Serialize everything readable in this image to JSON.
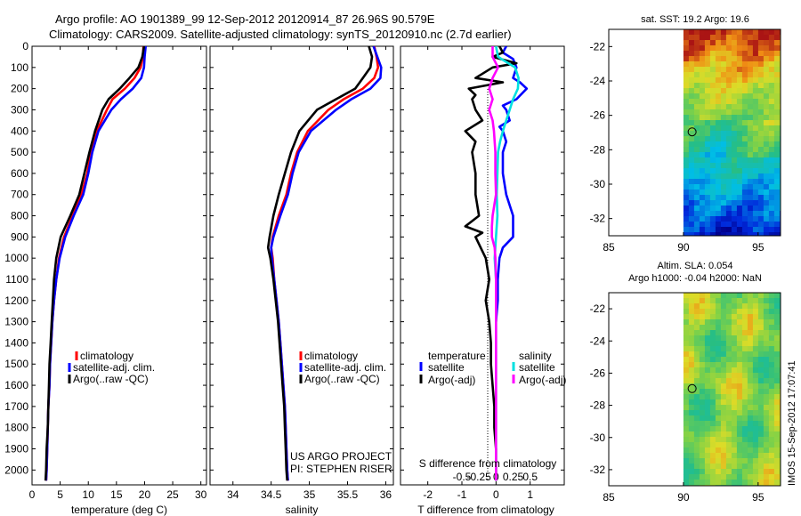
{
  "header": {
    "line1": "Argo profile: AO 1901389_99 12-Sep-2012 20120914_87 26.96S 90.579E",
    "line2": "Climatology: CARS2009. Satellite-adjusted climatology: synTS_20120910.nc (2.7d earlier)"
  },
  "project": {
    "line1": "US ARGO PROJECT",
    "line2": "PI: STEPHEN RISER"
  },
  "footer_stamp": "IMOS 15-Sep-2012 17:07:41",
  "colors": {
    "climatology": "#ff0000",
    "satellite_adj": "#0000ff",
    "argo": "#000000",
    "salinity_satellite": "#00e0e0",
    "salinity_argo": "#ff00ff"
  },
  "chart_data": [
    {
      "id": "temperature",
      "type": "line",
      "xlabel": "temperature (deg C)",
      "ylabel": "",
      "xlim": [
        0,
        31
      ],
      "ylim": [
        2070,
        0
      ],
      "x_ticks": [
        0,
        5,
        10,
        15,
        20,
        25,
        30
      ],
      "x_tick_labels": [
        "0",
        "5",
        "10",
        "15",
        "20",
        "25",
        "30"
      ],
      "y_ticks": [
        0,
        100,
        200,
        300,
        400,
        500,
        600,
        700,
        800,
        900,
        1000,
        1100,
        1200,
        1300,
        1400,
        1500,
        1600,
        1700,
        1800,
        1900,
        2000
      ],
      "y_tick_labels": [
        "0",
        "100",
        "200",
        "300",
        "400",
        "500",
        "600",
        "700",
        "800",
        "900",
        "1000",
        "1100",
        "1200",
        "1300",
        "1400",
        "1500",
        "1600",
        "1700",
        "1800",
        "1900",
        "2000"
      ],
      "legend": [
        "climatology",
        "satellite-adj. clim.",
        "Argo(..raw -QC)"
      ],
      "series": [
        {
          "name": "climatology",
          "color": "#ff0000",
          "depth": [
            0,
            50,
            100,
            150,
            200,
            250,
            300,
            400,
            500,
            600,
            700,
            800,
            900,
            1000,
            1100,
            1200,
            1300,
            1400,
            1500,
            1600,
            1700,
            1800,
            1900,
            2000,
            2050
          ],
          "values": [
            19.8,
            19.7,
            19.3,
            18.2,
            16.5,
            14.3,
            13.3,
            11.5,
            10.5,
            9.8,
            8.8,
            7.2,
            5.7,
            4.8,
            4.3,
            3.9,
            3.6,
            3.4,
            3.2,
            3.1,
            2.9,
            2.8,
            2.7,
            2.6,
            2.5
          ]
        },
        {
          "name": "satellite-adj. clim.",
          "color": "#0000ff",
          "depth": [
            0,
            50,
            100,
            150,
            200,
            250,
            300,
            400,
            500,
            600,
            700,
            800,
            900,
            1000,
            1100,
            1200,
            1300,
            1400,
            1500,
            1600,
            1700,
            1800,
            1900,
            2000,
            2050
          ],
          "values": [
            20.2,
            20.0,
            19.9,
            19.4,
            17.9,
            15.8,
            14.1,
            11.8,
            10.7,
            10.0,
            9.1,
            7.4,
            5.9,
            4.9,
            4.3,
            3.9,
            3.6,
            3.4,
            3.2,
            3.1,
            2.9,
            2.8,
            2.7,
            2.6,
            2.5
          ]
        },
        {
          "name": "Argo(..raw -QC)",
          "color": "#000000",
          "depth": [
            0,
            50,
            100,
            150,
            200,
            250,
            300,
            400,
            500,
            600,
            700,
            800,
            900,
            1000,
            1100,
            1200,
            1300,
            1400,
            1500,
            1600,
            1700,
            1800,
            1900,
            2000,
            2050
          ],
          "values": [
            19.9,
            19.6,
            18.9,
            17.3,
            15.6,
            13.6,
            12.5,
            11.2,
            10.2,
            9.3,
            8.4,
            6.8,
            5.1,
            4.3,
            3.9,
            3.7,
            3.5,
            3.3,
            3.1,
            3.0,
            2.9,
            2.8,
            2.6,
            2.5,
            2.4
          ]
        }
      ]
    },
    {
      "id": "salinity",
      "type": "line",
      "xlabel": "salinity",
      "xlim": [
        33.7,
        36.1
      ],
      "ylim": [
        2070,
        0
      ],
      "x_ticks": [
        34,
        34.5,
        35,
        35.5,
        36
      ],
      "x_tick_labels": [
        "34",
        "34.5",
        "35",
        "35.5",
        "36"
      ],
      "legend": [
        "climatology",
        "satellite-adj. clim.",
        "Argo(..raw -QC)"
      ],
      "series": [
        {
          "name": "climatology",
          "color": "#ff0000",
          "depth": [
            0,
            50,
            100,
            150,
            200,
            250,
            300,
            400,
            500,
            600,
            700,
            800,
            900,
            950,
            1000,
            1100,
            1200,
            1300,
            1400,
            1500,
            1600,
            1700,
            1800,
            1900,
            2000,
            2050
          ],
          "values": [
            35.85,
            35.88,
            35.9,
            35.85,
            35.7,
            35.45,
            35.25,
            34.98,
            34.84,
            34.76,
            34.7,
            34.6,
            34.52,
            34.5,
            34.52,
            34.54,
            34.57,
            34.6,
            34.62,
            34.64,
            34.66,
            34.68,
            34.69,
            34.7,
            34.71,
            34.72
          ]
        },
        {
          "name": "satellite-adj. clim.",
          "color": "#0000ff",
          "depth": [
            0,
            50,
            100,
            150,
            200,
            250,
            300,
            400,
            500,
            600,
            700,
            800,
            900,
            950,
            1000,
            1100,
            1200,
            1300,
            1400,
            1500,
            1600,
            1700,
            1800,
            1900,
            2000,
            2050
          ],
          "values": [
            35.84,
            35.89,
            35.94,
            35.93,
            35.8,
            35.55,
            35.35,
            35.02,
            34.86,
            34.78,
            34.72,
            34.62,
            34.53,
            34.5,
            34.51,
            34.54,
            34.57,
            34.6,
            34.62,
            34.64,
            34.66,
            34.68,
            34.69,
            34.7,
            34.71,
            34.72
          ]
        },
        {
          "name": "Argo(..raw -QC)",
          "color": "#000000",
          "depth": [
            0,
            50,
            100,
            150,
            200,
            250,
            300,
            400,
            500,
            600,
            700,
            800,
            900,
            950,
            1000,
            1100,
            1200,
            1300,
            1400,
            1500,
            1600,
            1700,
            1800,
            1900,
            2000,
            2050
          ],
          "values": [
            35.78,
            35.82,
            35.8,
            35.7,
            35.6,
            35.35,
            35.1,
            34.87,
            34.76,
            34.68,
            34.6,
            34.53,
            34.48,
            34.46,
            34.49,
            34.53,
            34.56,
            34.59,
            34.61,
            34.63,
            34.65,
            34.67,
            34.68,
            34.69,
            34.7,
            34.71
          ]
        }
      ]
    },
    {
      "id": "differences",
      "type": "line",
      "xlabel": "T difference from climatology",
      "xlabel_top": "S difference from climatology",
      "xlim": [
        -2.8,
        2.0
      ],
      "ylim": [
        2070,
        0
      ],
      "x_ticks": [
        -2,
        -1,
        0,
        1
      ],
      "x_tick_labels": [
        "-2",
        "-1",
        "0",
        "1"
      ],
      "s_ticks": [
        -0.5,
        -0.25,
        0,
        0.25,
        0.5
      ],
      "s_tick_labels": [
        "-0.5",
        "-0.25",
        "0",
        "0.25",
        "0.5"
      ],
      "legend_groups": [
        {
          "title": "temperature",
          "entries": [
            "satellite",
            "Argo(-adj)"
          ]
        },
        {
          "title": "salinity",
          "entries": [
            "satellite",
            "Argo(-adj)"
          ]
        }
      ],
      "series": [
        {
          "name": "temperature satellite",
          "color": "#0000ff",
          "depth": [
            0,
            30,
            60,
            100,
            150,
            170,
            200,
            250,
            280,
            300,
            350,
            380,
            400,
            450,
            500,
            600,
            700,
            800,
            850,
            900,
            950,
            1000,
            1100,
            1200,
            1300
          ],
          "values": [
            0.3,
            0.2,
            0.5,
            0.6,
            0.5,
            0.7,
            0.9,
            0.6,
            0.2,
            0.3,
            0.4,
            0.1,
            0.2,
            0.3,
            0.2,
            0.2,
            0.3,
            0.5,
            0.5,
            0.5,
            0.2,
            0.1,
            0.05,
            0.05,
            0.0
          ]
        },
        {
          "name": "temperature Argo(-adj)",
          "color": "#000000",
          "depth": [
            0,
            30,
            50,
            80,
            100,
            150,
            170,
            200,
            230,
            250,
            300,
            350,
            400,
            450,
            500,
            600,
            700,
            800,
            850,
            880,
            900,
            1000,
            1100,
            1200,
            1300,
            1400,
            1500,
            1600,
            1700,
            1800,
            1900,
            2000,
            2050
          ],
          "values": [
            0.1,
            0.2,
            -0.1,
            0.6,
            -0.1,
            -0.6,
            0.2,
            -0.8,
            -0.6,
            -0.7,
            -0.6,
            -0.4,
            -0.9,
            -0.6,
            -0.7,
            -0.6,
            -0.6,
            -0.5,
            -0.9,
            -0.4,
            -0.6,
            -0.3,
            -0.2,
            -0.3,
            -0.2,
            -0.15,
            -0.15,
            -0.1,
            -0.05,
            -0.05,
            0.0,
            0.0,
            0.0
          ]
        },
        {
          "name": "salinity satellite",
          "color": "#00e0e0",
          "depth": [
            0,
            50,
            100,
            150,
            200,
            250,
            300,
            350,
            400,
            450,
            500,
            600,
            700,
            800,
            900,
            1000,
            1100,
            1200,
            1400,
            1600,
            1800,
            2000,
            2050
          ],
          "values": [
            0.0,
            0.03,
            0.28,
            0.33,
            0.32,
            0.25,
            0.2,
            0.15,
            0.1,
            0.06,
            0.03,
            0.02,
            0.01,
            0.02,
            0.0,
            -0.02,
            0.0,
            0.0,
            0.0,
            0.0,
            0.0,
            0.0,
            0.0
          ]
        },
        {
          "name": "salinity Argo(-adj)",
          "color": "#ff00ff",
          "depth": [
            0,
            50,
            100,
            150,
            200,
            250,
            300,
            350,
            400,
            450,
            500,
            600,
            700,
            800,
            850,
            900,
            950,
            1000,
            1100,
            1200,
            1300,
            1400,
            1500,
            1600,
            1700,
            1800,
            1900,
            2000,
            2050
          ],
          "values": [
            -0.05,
            -0.05,
            0.03,
            -0.05,
            -0.1,
            -0.05,
            -0.1,
            -0.05,
            -0.03,
            -0.02,
            -0.01,
            -0.01,
            0.0,
            -0.05,
            -0.06,
            -0.06,
            -0.02,
            -0.01,
            0.0,
            0.0,
            0.0,
            0.0,
            0.0,
            0.0,
            0.0,
            0.0,
            0.0,
            0.0,
            0.0
          ]
        }
      ]
    },
    {
      "id": "sst_map",
      "type": "heatmap",
      "title": "sat. SST: 19.2 Argo: 19.6",
      "xlim": [
        85,
        96.5
      ],
      "ylim": [
        -33,
        -21
      ],
      "x_ticks": [
        85,
        90,
        95
      ],
      "x_tick_labels": [
        "85",
        "90",
        "95"
      ],
      "y_ticks": [
        -22,
        -24,
        -26,
        -28,
        -30,
        -32
      ],
      "y_tick_labels": [
        "-22",
        "-24",
        "-26",
        "-28",
        "-30",
        "-32"
      ],
      "data_lon_start": 90,
      "float_position": [
        90.58,
        -26.96
      ]
    },
    {
      "id": "sla_map",
      "type": "heatmap",
      "title": "Altim. SLA: 0.054",
      "title2": "Argo h1000: -0.04 h2000: NaN",
      "xlim": [
        85,
        96.5
      ],
      "ylim": [
        -33,
        -21
      ],
      "x_ticks": [
        85,
        90,
        95
      ],
      "x_tick_labels": [
        "85",
        "90",
        "95"
      ],
      "y_ticks": [
        -22,
        -24,
        -26,
        -28,
        -30,
        -32
      ],
      "y_tick_labels": [
        "-22",
        "-24",
        "-26",
        "-28",
        "-30",
        "-32"
      ],
      "data_lon_start": 90,
      "float_position": [
        90.58,
        -26.96
      ]
    }
  ]
}
